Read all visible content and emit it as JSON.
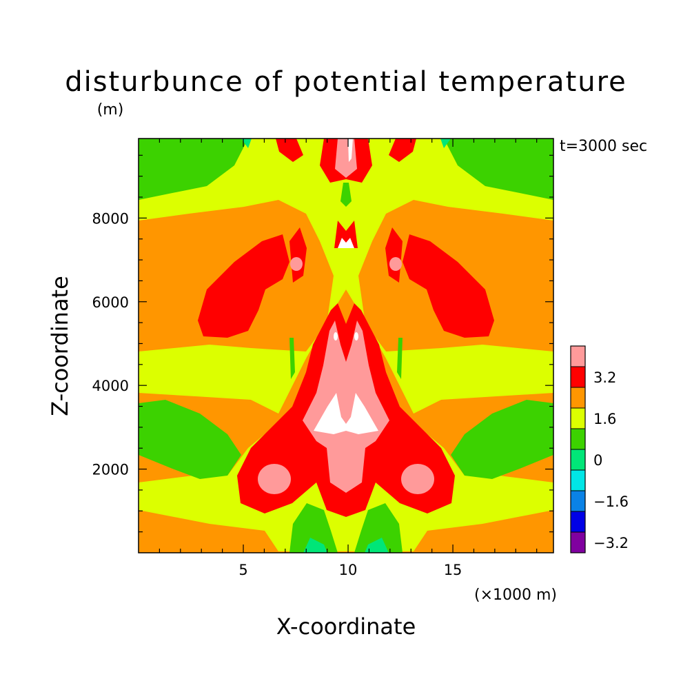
{
  "chart_data": {
    "type": "heatmap",
    "title": "disturbunce of potential temperature",
    "subtitle": "(m)",
    "time_label": "t=3000 sec",
    "xlabel": "X-coordinate",
    "ylabel": "Z-coordinate",
    "x_unit_label": "(×1000 m)",
    "xlim": [
      0,
      19.8
    ],
    "ylim": [
      0,
      9900
    ],
    "x_ticks": [
      {
        "value": 5,
        "label": "5"
      },
      {
        "value": 10,
        "label": "10"
      },
      {
        "value": 15,
        "label": "15"
      }
    ],
    "y_ticks": [
      {
        "value": 2000,
        "label": "2000"
      },
      {
        "value": 4000,
        "label": "4000"
      },
      {
        "value": 6000,
        "label": "6000"
      },
      {
        "value": 8000,
        "label": "8000"
      }
    ],
    "colorbar": {
      "levels": [
        {
          "color": "#8000a0",
          "label": "-3.2"
        },
        {
          "color": "#0000e6",
          "label": ""
        },
        {
          "color": "#0a82e6",
          "label": "-1.6"
        },
        {
          "color": "#00e6e6",
          "label": ""
        },
        {
          "color": "#00e678",
          "label": "0"
        },
        {
          "color": "#3cd200",
          "label": ""
        },
        {
          "color": "#dcff00",
          "label": "1.6"
        },
        {
          "color": "#ff9600",
          "label": ""
        },
        {
          "color": "#ff0000",
          "label": "3.2"
        },
        {
          "color": "#ff9a9a",
          "label": ""
        }
      ],
      "tick_labels": [
        "3.2",
        "1.6",
        "0",
        "−1.6",
        "−3.2"
      ]
    },
    "field": {
      "background": "#ff9600",
      "regions": [
        {
          "level": 6,
          "color": "#dcff00",
          "description": "yellow band"
        },
        {
          "level": 5,
          "color": "#3cd200",
          "description": "green upper corners and lower flanks"
        },
        {
          "level": 8,
          "color": "#ff0000",
          "description": "red lobes and central column"
        },
        {
          "level": 9,
          "color": "#ff9a9a",
          "description": "pink core"
        },
        {
          "level": 10,
          "color": "#ffffff",
          "description": "maximum spots"
        }
      ]
    }
  }
}
